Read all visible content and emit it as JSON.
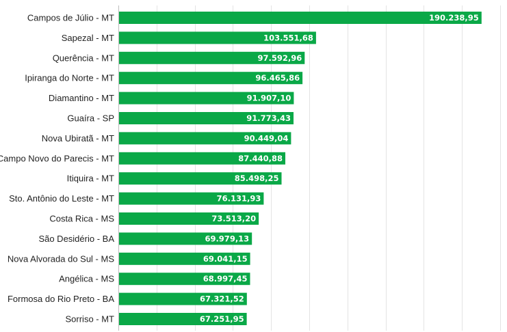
{
  "chart_data": {
    "type": "bar",
    "orientation": "horizontal",
    "categories": [
      "Campos de Júlio - MT",
      "Sapezal - MT",
      "Querência - MT",
      "Ipiranga do Norte - MT",
      "Diamantino - MT",
      "Guaíra - SP",
      "Nova Ubiratã - MT",
      "Campo Novo do Parecis - MT",
      "Itiquira - MT",
      "Sto. Antônio do Leste - MT",
      "Costa Rica - MS",
      "São Desidério - BA",
      "Nova Alvorada do Sul - MS",
      "Angélica - MS",
      "Formosa do Rio Preto - BA",
      "Sorriso - MT"
    ],
    "values": [
      190238.95,
      103551.68,
      97592.96,
      96465.86,
      91907.1,
      91773.43,
      90449.04,
      87440.88,
      85498.25,
      76131.93,
      73513.2,
      69979.13,
      69041.15,
      68997.45,
      67321.52,
      67251.95
    ],
    "value_labels": [
      "190.238,95",
      "103.551,68",
      "97.592,96",
      "96.465,86",
      "91.907,10",
      "91.773,43",
      "90.449,04",
      "87.440,88",
      "85.498,25",
      "76.131,93",
      "73.513,20",
      "69.979,13",
      "69.041,15",
      "68.997,45",
      "67.321,52",
      "67.251,95"
    ],
    "xlim": [
      0,
      200000
    ],
    "grid": true,
    "grid_step": 20000,
    "title": "",
    "xlabel": "",
    "ylabel": ""
  },
  "colors": {
    "bar": "#0aa847",
    "value_text": "#ffffff",
    "category_text": "#222222",
    "grid": "#e3e3e3"
  }
}
